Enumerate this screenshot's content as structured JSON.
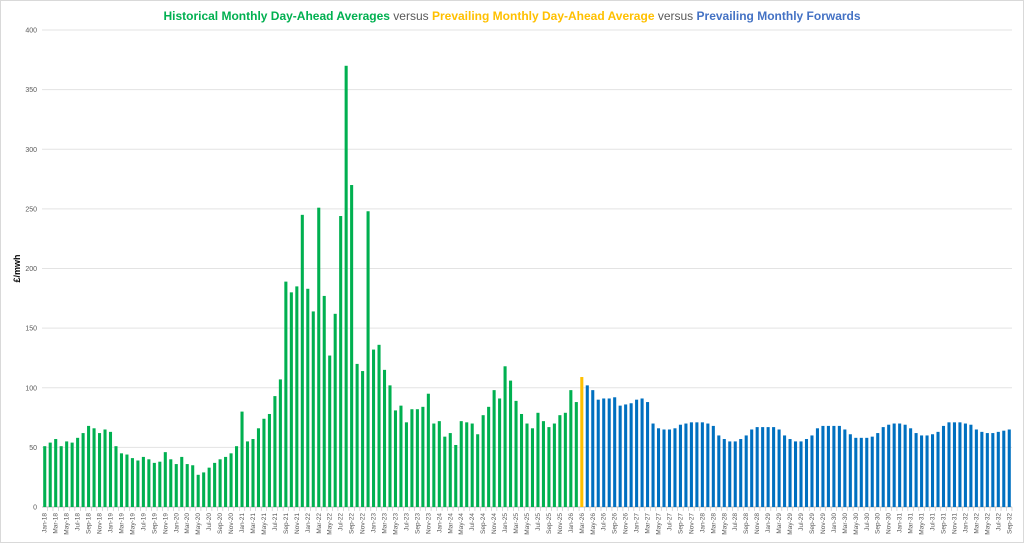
{
  "chart_data": {
    "type": "bar",
    "title_parts": [
      {
        "text": "Historical Monthly Day-Ahead Averages",
        "color": "#00b050"
      },
      {
        "text": " versus ",
        "color": "#595959"
      },
      {
        "text": "Prevailing Monthly Day-Ahead Average",
        "color": "#ffc000"
      },
      {
        "text": " versus ",
        "color": "#595959"
      },
      {
        "text": "Prevailing Monthly Forwards",
        "color": "#4472c4"
      }
    ],
    "ylabel": "£/mwh",
    "xlabel": "",
    "ylim": [
      0,
      400
    ],
    "yticks": [
      0,
      50,
      100,
      150,
      200,
      250,
      300,
      350,
      400
    ],
    "grid": true,
    "start_month": "Jan-18",
    "label_every": 2,
    "series": [
      {
        "name": "Historical Monthly Day-Ahead Averages",
        "color": "#00b050",
        "start_index": 0,
        "values": [
          51,
          54,
          57,
          51,
          55,
          54,
          58,
          62,
          68,
          66,
          62,
          65,
          63,
          51,
          45,
          44,
          41,
          39,
          42,
          40,
          37,
          38,
          46,
          40,
          36,
          42,
          36,
          35,
          27,
          29,
          33,
          37,
          40,
          42,
          45,
          51,
          80,
          55,
          57,
          66,
          74,
          78,
          93,
          107,
          189,
          180,
          185,
          245,
          183,
          164,
          251,
          177,
          127,
          162,
          244,
          370,
          270,
          120,
          114,
          248,
          132,
          136,
          115,
          102,
          81,
          85,
          71,
          82,
          82,
          84,
          95,
          70,
          72,
          59,
          62,
          52,
          72,
          71,
          70,
          61,
          77,
          84,
          98,
          91,
          118,
          106,
          89,
          78,
          70,
          66,
          79,
          72,
          67,
          70,
          77,
          79,
          98,
          88
        ]
      },
      {
        "name": "Prevailing Monthly Day-Ahead Average",
        "color": "#ffc000",
        "start_index": 98,
        "values": [
          109
        ]
      },
      {
        "name": "Prevailing Monthly Forwards",
        "color": "#0070c0",
        "start_index": 99,
        "values": [
          102,
          98,
          90,
          91,
          91,
          92,
          85,
          86,
          87,
          90,
          91,
          88,
          70,
          66,
          65,
          65,
          66,
          69,
          70,
          71,
          71,
          71,
          70,
          68,
          60,
          57,
          55,
          55,
          57,
          60,
          65,
          67,
          67,
          67,
          67,
          65,
          60,
          57,
          55,
          55,
          57,
          60,
          66,
          68,
          68,
          68,
          68,
          65,
          61,
          58,
          58,
          58,
          59,
          62,
          67,
          69,
          70,
          70,
          69,
          66,
          62,
          60,
          60,
          61,
          63,
          68,
          71,
          71,
          71,
          70,
          69,
          65,
          63,
          62,
          62,
          63,
          64,
          65
        ]
      }
    ]
  }
}
